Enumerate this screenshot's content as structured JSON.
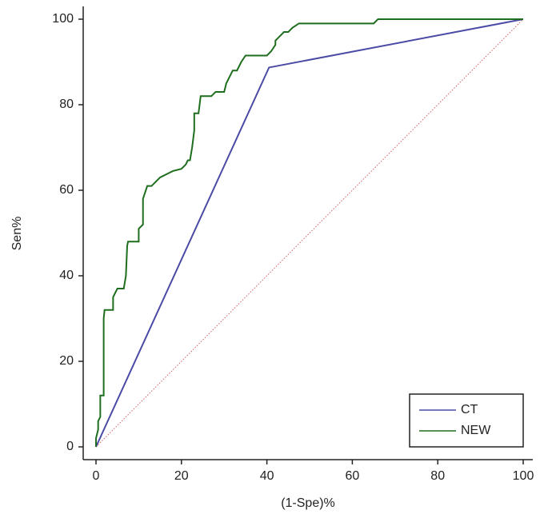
{
  "chart_data": {
    "type": "line",
    "xlabel": "(1-Spe)%",
    "ylabel": "Sen%",
    "xlim": [
      0,
      100
    ],
    "ylim": [
      0,
      100
    ],
    "xticks": [
      0,
      20,
      40,
      60,
      80,
      100
    ],
    "yticks": [
      0,
      20,
      40,
      60,
      80,
      100
    ],
    "legend": "lower right",
    "series": [
      {
        "name": "CT",
        "color": "#4b4ba6",
        "x": [
          0,
          40.5,
          100
        ],
        "values": [
          0,
          88.7,
          100
        ]
      },
      {
        "name": "NEW",
        "color": "#1f6e1f",
        "x": [
          0,
          0,
          0.5,
          0.5,
          1,
          1,
          1.8,
          1.8,
          2,
          4,
          4,
          5,
          6.5,
          7,
          7.3,
          7.5,
          10,
          10,
          11,
          11,
          12,
          13,
          14,
          15,
          17,
          18,
          20,
          21,
          21.5,
          22,
          22.5,
          23,
          23,
          24,
          24.5,
          27,
          28,
          30,
          30.5,
          31,
          32,
          33,
          34,
          35,
          40,
          41,
          42,
          42,
          43,
          44,
          45,
          46,
          47.5,
          65,
          66,
          100
        ],
        "values": [
          0,
          2,
          4,
          6,
          7,
          12,
          12,
          30,
          32,
          32,
          35,
          37,
          37,
          40,
          47,
          48,
          48,
          51,
          52,
          58,
          61,
          61,
          62,
          63,
          64,
          64.5,
          65,
          66,
          67,
          67,
          70,
          74,
          78,
          78,
          82,
          82,
          83,
          83,
          85,
          86,
          88,
          88,
          90,
          91.5,
          91.5,
          92.5,
          94,
          95,
          96,
          97,
          97,
          98,
          99,
          99,
          100,
          100
        ]
      }
    ]
  }
}
